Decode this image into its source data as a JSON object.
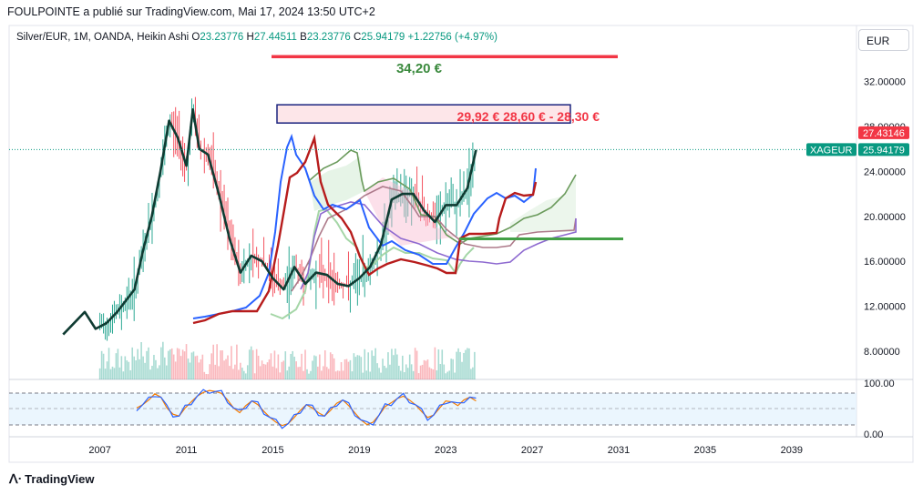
{
  "header": {
    "publisher_line": "FOULPOINTE a publié sur TradingView.com, Mai 17, 2024 13:50 UTC+2"
  },
  "legend": {
    "symbol": "Silver/EUR, 1M, OANDA, Heikin Ashi",
    "o_label": "O",
    "o_value": "23.23776",
    "h_label": "H",
    "h_value": "27.44511",
    "l_label": "B",
    "l_value": "23.23776",
    "c_label": "C",
    "c_value": "25.94179",
    "change": "+1.22756 (+4.97%)"
  },
  "currency_button": "EUR",
  "footer": {
    "brand": "TradingView"
  },
  "colors": {
    "up": "#089981",
    "down": "#f23645",
    "price_tag": "#089981",
    "high_tag": "#f23645",
    "target_line": "#f23645",
    "support_line": "#43a047",
    "zone_fill": "#fcdcdf",
    "zone_border": "#1a237e",
    "rsi_band": "#e3f2fd"
  },
  "chart_data": {
    "type": "line",
    "title": "",
    "xlabel": "",
    "ylabel": "",
    "x_ticks": [
      "2007",
      "2011",
      "2015",
      "2019",
      "2023",
      "2027",
      "2031",
      "2035",
      "2039"
    ],
    "y_ticks": [
      "8.00000",
      "12.00000",
      "16.00000",
      "20.00000",
      "24.00000",
      "32.00000"
    ],
    "ylim": [
      5.5,
      36
    ],
    "xlim": [
      2002.8,
      2042
    ],
    "price_tags": {
      "high": "27.43146",
      "last": "25.94179",
      "last_symbol": "XAGEUR",
      "partial_tick": "28.00000"
    },
    "annotations": {
      "target_label": "34,20 €",
      "target_value": 34.2,
      "zone_label": "29,92 €  28,60 € - 28,30 €",
      "zone_top": 29.92,
      "zone_bottom": 28.3,
      "support_value": 18.0
    },
    "rsi": {
      "y_ticks": [
        "100.00",
        "0.00"
      ],
      "upper_band": 70,
      "lower_band": 30,
      "values": [
        55,
        62,
        72,
        85,
        78,
        55,
        42,
        38,
        55,
        68,
        80,
        88,
        92,
        90,
        86,
        72,
        55,
        45,
        60,
        70,
        62,
        48,
        35,
        25,
        18,
        22,
        35,
        50,
        62,
        55,
        45,
        38,
        50,
        65,
        72,
        60,
        45,
        30,
        20,
        25,
        40,
        58,
        66,
        75,
        80,
        72,
        62,
        48,
        35,
        40,
        55,
        70,
        68,
        60,
        72,
        78,
        70
      ]
    },
    "series": [
      {
        "values_x": [
          2005.3,
          2005.8,
          2006.3,
          2006.8,
          2007.3,
          2007.8,
          2008.2,
          2008.6,
          2009.0,
          2009.4,
          2009.8,
          2010.2,
          2010.6,
          2011.0,
          2011.3,
          2011.6,
          2012.0,
          2012.5,
          2013.0,
          2013.5,
          2014.0,
          2014.5,
          2015.0,
          2015.5,
          2016.0,
          2016.5,
          2017.0,
          2017.5,
          2018.0,
          2018.5,
          2019.0,
          2019.5,
          2020.0,
          2020.5,
          2021.0,
          2021.5,
          2022.0,
          2022.5,
          2023.0,
          2023.5,
          2024.0,
          2024.4
        ],
        "values": [
          9.5,
          10.5,
          11.5,
          10.0,
          10.5,
          11.5,
          12.5,
          13.5,
          17.0,
          20.0,
          24.0,
          28.5,
          27.0,
          24.5,
          29.5,
          26.0,
          25.5,
          22.0,
          18.0,
          15.0,
          16.5,
          16.0,
          14.5,
          13.5,
          15.5,
          14.0,
          15.0,
          14.8,
          14.0,
          13.8,
          14.5,
          15.5,
          17.5,
          21.5,
          22.0,
          22.0,
          20.5,
          19.5,
          21.0,
          21.0,
          22.5,
          25.9
        ]
      }
    ]
  }
}
